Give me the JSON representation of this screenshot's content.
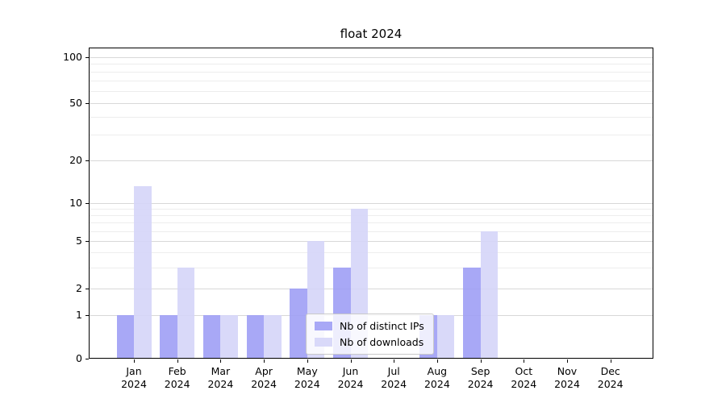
{
  "chart_data": {
    "type": "bar",
    "title": "float 2024",
    "categories": [
      "Jan 2024",
      "Feb 2024",
      "Mar 2024",
      "Apr 2024",
      "May 2024",
      "Jun 2024",
      "Jul 2024",
      "Aug 2024",
      "Sep 2024",
      "Oct 2024",
      "Nov 2024",
      "Dec 2024"
    ],
    "series": [
      {
        "name": "Nb of distinct IPs",
        "color": "#9f9ff5",
        "values": [
          1,
          1,
          1,
          1,
          2,
          3,
          0,
          1,
          3,
          0,
          0,
          0
        ]
      },
      {
        "name": "Nb of downloads",
        "color": "#d5d5f8",
        "values": [
          13,
          3,
          1,
          1,
          5,
          9,
          0,
          1,
          6,
          0,
          0,
          0
        ]
      }
    ],
    "yscale": "symlog (linear 0-1, log above)",
    "ylim": [
      0,
      130
    ],
    "yticks": [
      100,
      50,
      20,
      10,
      5,
      2,
      1,
      0
    ],
    "ytick_labels": [
      "100",
      "50",
      "20",
      "10",
      "5",
      "2",
      "1",
      "0"
    ],
    "minor_yticks": [
      3,
      4,
      6,
      7,
      8,
      9,
      30,
      40,
      60,
      70,
      80,
      90
    ],
    "grid": true,
    "legend_position": "lower center (inside plot)",
    "xlabel": "",
    "ylabel": ""
  }
}
